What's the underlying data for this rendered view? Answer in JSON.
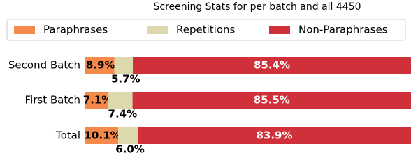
{
  "chart_data": {
    "type": "stacked-barh",
    "title": "Screening Stats for per batch and all 4450",
    "categories": [
      "Second Batch",
      "First Batch",
      "Total"
    ],
    "series": [
      {
        "name": "Paraphrases",
        "color": "#f5894b",
        "values": [
          8.9,
          7.1,
          10.1
        ],
        "value_labels": [
          "8.9%",
          "7.1%",
          "10.1%"
        ]
      },
      {
        "name": "Repetitions",
        "color": "#ddd9ac",
        "values": [
          5.7,
          7.4,
          6
        ],
        "value_labels": [
          "5.7%",
          "7.4%",
          "6.0%"
        ]
      },
      {
        "name": "Non-Paraphrases",
        "color": "#d0303a",
        "values": [
          85.4,
          85.5,
          83.9
        ],
        "value_labels": [
          "85.4%",
          "85.5%",
          "83.9%"
        ]
      }
    ]
  }
}
